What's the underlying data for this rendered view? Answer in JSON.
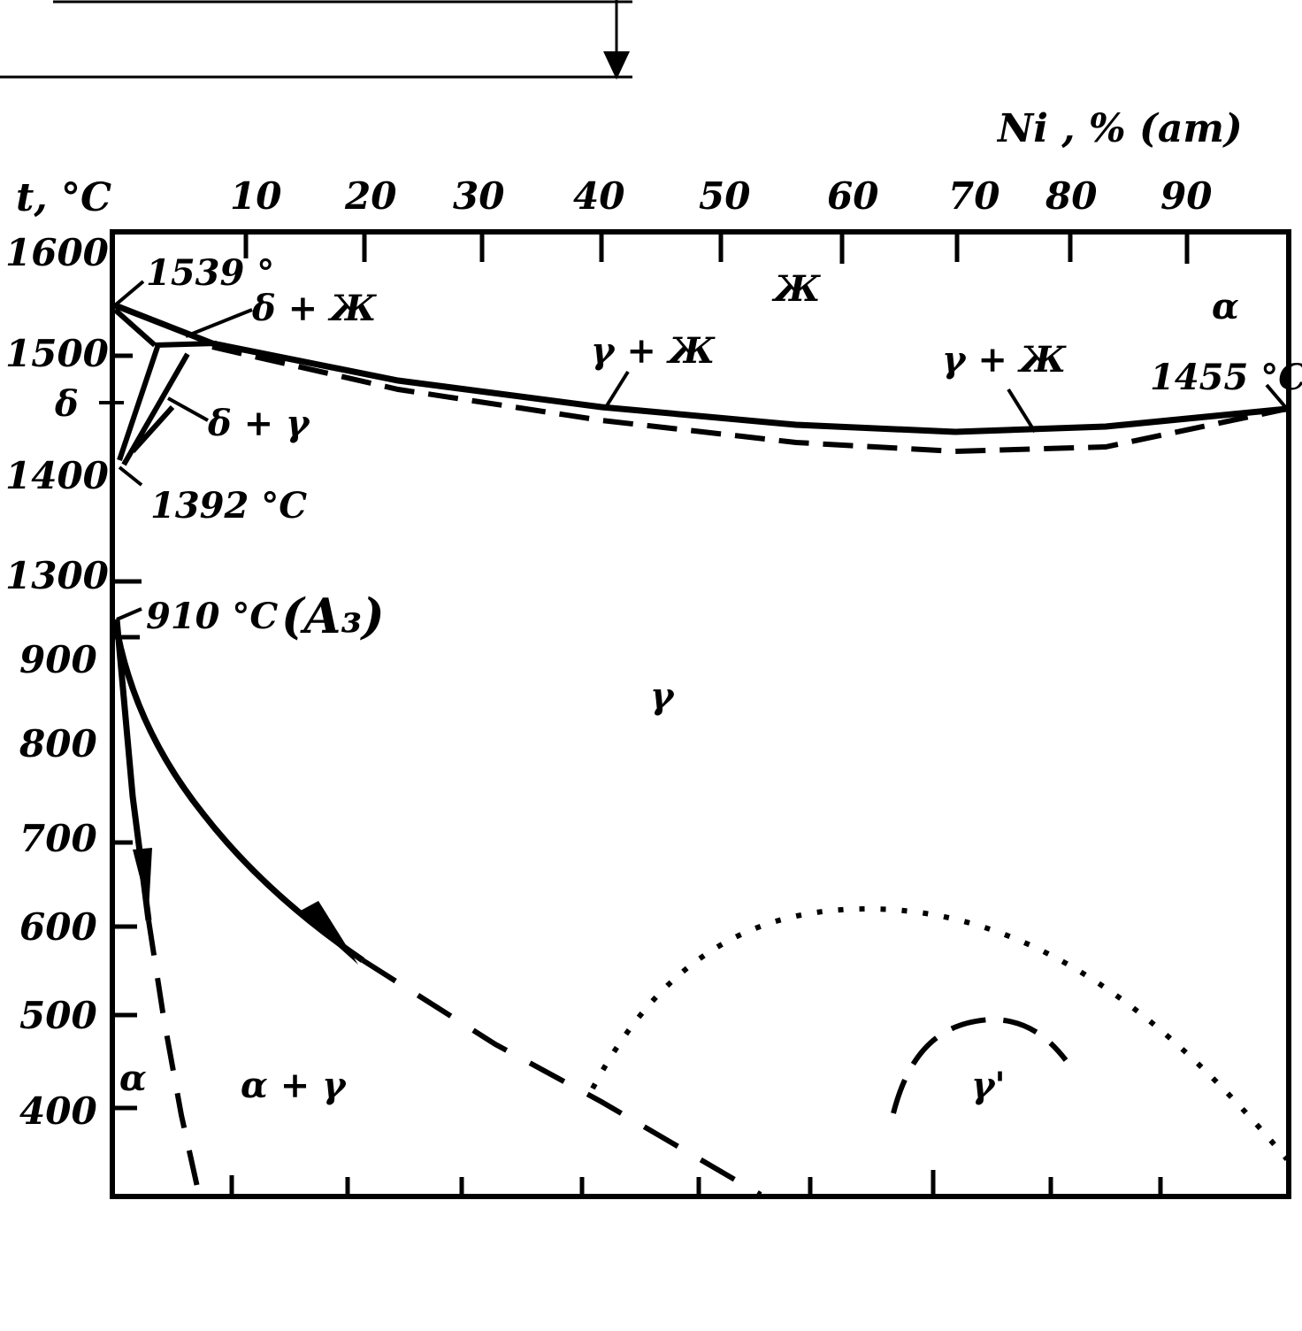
{
  "diagram": {
    "x_axis_title": "Ni , % (am)",
    "y_axis_title": "t, °C",
    "x_ticks": [
      "10",
      "20",
      "30",
      "40",
      "50",
      "60",
      "70",
      "80",
      "90"
    ],
    "y_ticks": [
      "1600",
      "1500",
      "1400",
      "1300",
      "900",
      "800",
      "700",
      "600",
      "500",
      "400"
    ],
    "phase_labels": {
      "liquid": "Ж",
      "alpha_top": "α",
      "gamma_liquid_left": "γ + Ж",
      "gamma_liquid_right": "γ + Ж",
      "delta_liquid": "δ + Ж",
      "delta": "δ",
      "delta_gamma": "δ + γ",
      "gamma": "γ",
      "alpha": "α",
      "alpha_gamma": "α + γ",
      "gamma_prime": "γ'"
    },
    "temperatures": {
      "fe_melting": "1539 °",
      "ni_melting": "1455 °C",
      "delta_gamma": "1392 °C",
      "a3": "910 °C",
      "a3_label": "(A₃)"
    }
  }
}
